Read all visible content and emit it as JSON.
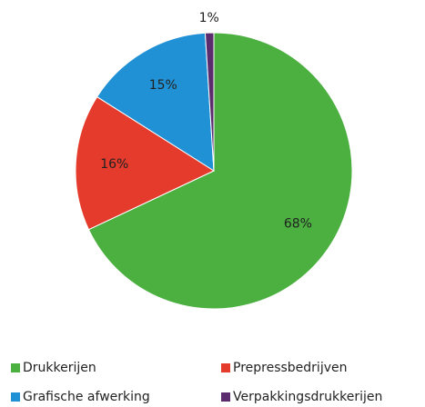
{
  "chart_data": {
    "type": "pie",
    "categories": [
      "Drukkerijen",
      "Prepressbedrijven",
      "Grafische afwerking",
      "Verpakkingsdrukkerijen"
    ],
    "values": [
      68,
      16,
      15,
      1
    ],
    "value_labels": [
      "68%",
      "16%",
      "15%",
      "1%"
    ],
    "colors": [
      "#4bb040",
      "#e43b2c",
      "#2191d6",
      "#5b2d6e"
    ],
    "legend": "bottom"
  }
}
